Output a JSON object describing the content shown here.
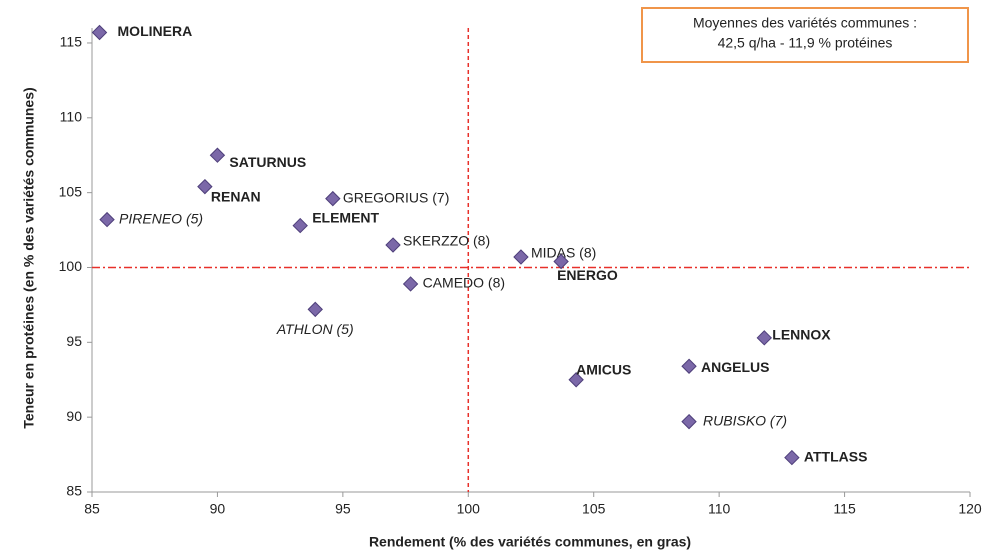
{
  "chart_data": {
    "type": "scatter",
    "x_label": "Rendement (% des variétés communes, en gras)",
    "y_label": "Teneur en protéines (en % des variétés communes)",
    "annotation": [
      "Moyennes des variétés communes :",
      "42,5 q/ha  -  11,9 % protéines"
    ],
    "xlim": [
      85,
      120
    ],
    "xticks": [
      85,
      90,
      95,
      100,
      105,
      110,
      115,
      120
    ],
    "ylim": [
      85,
      116
    ],
    "yticks": [
      85,
      90,
      95,
      100,
      105,
      110,
      115
    ],
    "reference_lines": {
      "x": 100,
      "y": 100,
      "color": "#e8302a"
    },
    "color": "#7b68a8",
    "points": [
      {
        "label": "MOLINERA",
        "x": 85.3,
        "y": 115.7,
        "style": "bold"
      },
      {
        "label": "SATURNUS",
        "x": 90.0,
        "y": 107.5,
        "style": "bold"
      },
      {
        "label": "RENAN",
        "x": 89.5,
        "y": 105.4,
        "style": "bold"
      },
      {
        "label": "PIRENEO (5)",
        "x": 85.6,
        "y": 103.2,
        "style": "italic"
      },
      {
        "label": "GREGORIUS (7)",
        "x": 94.6,
        "y": 104.6,
        "style": "normal"
      },
      {
        "label": "ELEMENT",
        "x": 93.3,
        "y": 102.8,
        "style": "bold"
      },
      {
        "label": "SKERZZO (8)",
        "x": 97.0,
        "y": 101.5,
        "style": "normal"
      },
      {
        "label": "MIDAS (8)",
        "x": 102.1,
        "y": 100.7,
        "style": "normal"
      },
      {
        "label": "ENERGO",
        "x": 103.7,
        "y": 100.4,
        "style": "bold"
      },
      {
        "label": "CAMEDO (8)",
        "x": 97.7,
        "y": 98.9,
        "style": "normal"
      },
      {
        "label": "ATHLON (5)",
        "x": 93.9,
        "y": 97.2,
        "style": "italic"
      },
      {
        "label": "LENNOX",
        "x": 111.8,
        "y": 95.3,
        "style": "bold"
      },
      {
        "label": "ANGELUS",
        "x": 108.8,
        "y": 93.4,
        "style": "bold"
      },
      {
        "label": "AMICUS",
        "x": 104.3,
        "y": 92.5,
        "style": "bold"
      },
      {
        "label": "RUBISKO (7)",
        "x": 108.8,
        "y": 89.7,
        "style": "italic"
      },
      {
        "label": "ATTLASS",
        "x": 112.9,
        "y": 87.3,
        "style": "bold"
      }
    ]
  }
}
